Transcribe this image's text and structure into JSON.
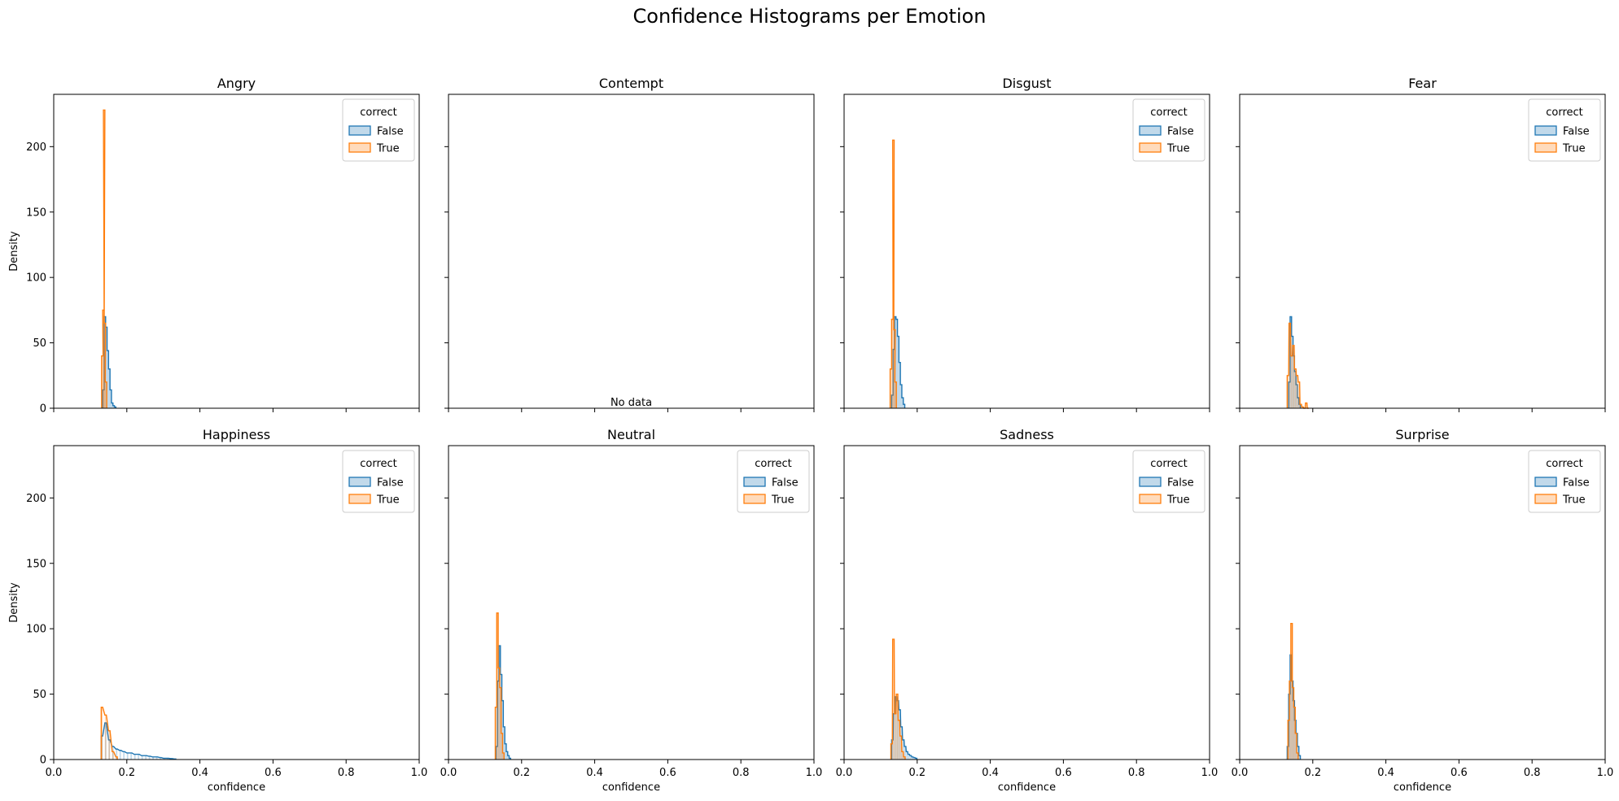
{
  "suptitle": "Confidence Histograms per Emotion",
  "colors": {
    "false_line": "#1f77b4",
    "false_fill": "#1f77b4",
    "true_line": "#ff7f0e",
    "true_fill": "#ff7f0e",
    "overlap_fill": "#a9a9a9",
    "axis": "#000000"
  },
  "chart_data": [
    {
      "type": "histogram",
      "title": "Angry",
      "xlabel": "",
      "ylabel": "Density",
      "xlim": [
        0,
        1
      ],
      "ylim": [
        0,
        240
      ],
      "xticks": [],
      "yticks": [
        "0",
        "50",
        "100",
        "150",
        "200"
      ],
      "legend": {
        "title": "correct",
        "entries": [
          "False",
          "True"
        ],
        "placement": "top-right"
      },
      "series": [
        {
          "name": "False",
          "bin_starts": [
            0.134,
            0.138,
            0.142,
            0.146,
            0.15,
            0.154,
            0.158,
            0.162,
            0.166
          ],
          "values": [
            14,
            70,
            62,
            44,
            30,
            14,
            4,
            2,
            1
          ]
        },
        {
          "name": "True",
          "bin_starts": [
            0.131,
            0.134,
            0.136,
            0.138,
            0.141
          ],
          "values": [
            40,
            75,
            228,
            65,
            20
          ]
        }
      ]
    },
    {
      "type": "histogram",
      "title": "Contempt",
      "xlabel": "",
      "ylabel": "",
      "xlim": [
        0,
        1
      ],
      "ylim": [
        0,
        240
      ],
      "xticks": [],
      "yticks": [],
      "annotation": "No data",
      "series": []
    },
    {
      "type": "histogram",
      "title": "Disgust",
      "xlabel": "",
      "ylabel": "",
      "xlim": [
        0,
        1
      ],
      "ylim": [
        0,
        240
      ],
      "xticks": [],
      "yticks": [],
      "legend": {
        "title": "correct",
        "entries": [
          "False",
          "True"
        ],
        "placement": "top-right"
      },
      "series": [
        {
          "name": "False",
          "bin_starts": [
            0.13,
            0.134,
            0.138,
            0.142,
            0.146,
            0.15,
            0.154,
            0.158,
            0.162
          ],
          "values": [
            10,
            45,
            70,
            68,
            55,
            35,
            18,
            8,
            3
          ]
        },
        {
          "name": "True",
          "bin_starts": [
            0.126,
            0.13,
            0.133,
            0.136,
            0.139
          ],
          "values": [
            30,
            68,
            205,
            60,
            20
          ]
        }
      ]
    },
    {
      "type": "histogram",
      "title": "Fear",
      "xlabel": "",
      "ylabel": "",
      "xlim": [
        0,
        1
      ],
      "ylim": [
        0,
        240
      ],
      "xticks": [],
      "yticks": [],
      "legend": {
        "title": "correct",
        "entries": [
          "False",
          "True"
        ],
        "placement": "top-right"
      },
      "series": [
        {
          "name": "False",
          "bin_starts": [
            0.134,
            0.138,
            0.142,
            0.146,
            0.15,
            0.154,
            0.158,
            0.162
          ],
          "values": [
            20,
            70,
            55,
            40,
            28,
            18,
            8,
            3
          ]
        },
        {
          "name": "True",
          "bin_starts": [
            0.13,
            0.135,
            0.14,
            0.145,
            0.15,
            0.155,
            0.16,
            0.165,
            0.17,
            0.175,
            0.18,
            0.185
          ],
          "values": [
            25,
            65,
            40,
            48,
            30,
            25,
            20,
            3,
            1,
            0,
            4,
            0
          ]
        }
      ]
    },
    {
      "type": "histogram",
      "title": "Happiness",
      "xlabel": "confidence",
      "ylabel": "Density",
      "xlim": [
        0,
        1
      ],
      "ylim": [
        0,
        240
      ],
      "xticks": [
        "0.0",
        "0.2",
        "0.4",
        "0.6",
        "0.8",
        "1.0"
      ],
      "yticks": [
        "0",
        "50",
        "100",
        "150",
        "200"
      ],
      "legend": {
        "title": "correct",
        "entries": [
          "False",
          "True"
        ],
        "placement": "top-right"
      },
      "series": [
        {
          "name": "False",
          "bin_starts": [
            0.13,
            0.14,
            0.15,
            0.16,
            0.17,
            0.18,
            0.19,
            0.2,
            0.21,
            0.22,
            0.23,
            0.24,
            0.25,
            0.26,
            0.27,
            0.28,
            0.29,
            0.3,
            0.31,
            0.32,
            0.33
          ],
          "values": [
            18,
            28,
            15,
            10,
            8,
            7,
            6,
            5,
            5,
            4,
            4,
            3,
            3,
            2.5,
            2,
            2,
            1.5,
            1,
            1,
            0.7,
            0.4
          ]
        },
        {
          "name": "True",
          "bin_starts": [
            0.13,
            0.14,
            0.15,
            0.16,
            0.17
          ],
          "values": [
            40,
            34,
            22,
            6,
            2
          ]
        }
      ]
    },
    {
      "type": "histogram",
      "title": "Neutral",
      "xlabel": "confidence",
      "ylabel": "",
      "xlim": [
        0,
        1
      ],
      "ylim": [
        0,
        240
      ],
      "xticks": [
        "0.0",
        "0.2",
        "0.4",
        "0.6",
        "0.8",
        "1.0"
      ],
      "yticks": [],
      "legend": {
        "title": "correct",
        "entries": [
          "False",
          "True"
        ],
        "placement": "top-right"
      },
      "series": [
        {
          "name": "False",
          "bin_starts": [
            0.13,
            0.134,
            0.138,
            0.142,
            0.146,
            0.15,
            0.154,
            0.158,
            0.162,
            0.166
          ],
          "values": [
            10,
            60,
            87,
            65,
            45,
            25,
            12,
            6,
            3,
            1
          ]
        },
        {
          "name": "True",
          "bin_starts": [
            0.128,
            0.132,
            0.136,
            0.14,
            0.144,
            0.148
          ],
          "values": [
            40,
            112,
            70,
            55,
            20,
            5
          ]
        }
      ]
    },
    {
      "type": "histogram",
      "title": "Sadness",
      "xlabel": "confidence",
      "ylabel": "",
      "xlim": [
        0,
        1
      ],
      "ylim": [
        0,
        240
      ],
      "xticks": [
        "0.0",
        "0.2",
        "0.4",
        "0.6",
        "0.8",
        "1.0"
      ],
      "yticks": [],
      "legend": {
        "title": "correct",
        "entries": [
          "False",
          "True"
        ],
        "placement": "top-right"
      },
      "series": [
        {
          "name": "False",
          "bin_starts": [
            0.13,
            0.135,
            0.14,
            0.145,
            0.15,
            0.155,
            0.16,
            0.165,
            0.17,
            0.175,
            0.18,
            0.185,
            0.19,
            0.195
          ],
          "values": [
            15,
            35,
            48,
            45,
            38,
            25,
            15,
            10,
            6,
            4,
            3,
            2,
            1.5,
            1
          ]
        },
        {
          "name": "True",
          "bin_starts": [
            0.128,
            0.133,
            0.138,
            0.143,
            0.148,
            0.153,
            0.158,
            0.163
          ],
          "values": [
            12,
            92,
            35,
            50,
            30,
            18,
            6,
            2
          ]
        }
      ]
    },
    {
      "type": "histogram",
      "title": "Surprise",
      "xlabel": "confidence",
      "ylabel": "",
      "xlim": [
        0,
        1
      ],
      "ylim": [
        0,
        240
      ],
      "xticks": [
        "0.0",
        "0.2",
        "0.4",
        "0.6",
        "0.8",
        "1.0"
      ],
      "yticks": [],
      "legend": {
        "title": "correct",
        "entries": [
          "False",
          "True"
        ],
        "placement": "top-right"
      },
      "series": [
        {
          "name": "False",
          "bin_starts": [
            0.13,
            0.134,
            0.138,
            0.142,
            0.146,
            0.15,
            0.154,
            0.158,
            0.162
          ],
          "values": [
            10,
            50,
            80,
            60,
            45,
            30,
            20,
            10,
            3
          ]
        },
        {
          "name": "True",
          "bin_starts": [
            0.132,
            0.136,
            0.14,
            0.144,
            0.148,
            0.152,
            0.156
          ],
          "values": [
            30,
            60,
            104,
            55,
            40,
            20,
            5
          ]
        }
      ]
    }
  ]
}
